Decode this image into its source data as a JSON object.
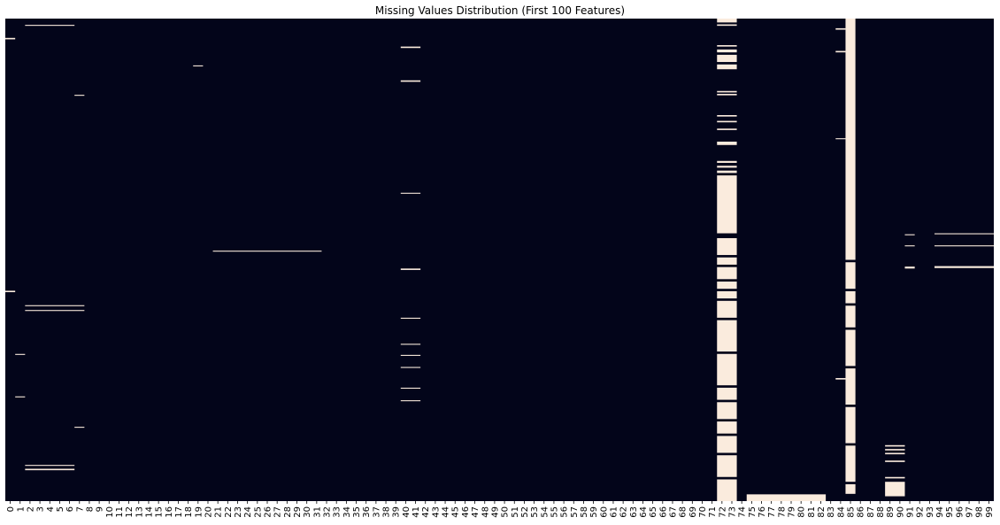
{
  "chart_data": {
    "type": "heatmap",
    "title": "Missing Values Distribution (First 100 Features)",
    "xlabel": "",
    "ylabel": "",
    "x": [
      "0",
      "1",
      "2",
      "3",
      "4",
      "5",
      "6",
      "7",
      "8",
      "9",
      "10",
      "11",
      "12",
      "13",
      "14",
      "15",
      "16",
      "17",
      "18",
      "19",
      "20",
      "21",
      "22",
      "23",
      "24",
      "25",
      "26",
      "27",
      "28",
      "29",
      "30",
      "31",
      "32",
      "33",
      "34",
      "35",
      "36",
      "37",
      "38",
      "39",
      "40",
      "41",
      "42",
      "43",
      "44",
      "45",
      "46",
      "47",
      "48",
      "49",
      "50",
      "51",
      "52",
      "53",
      "54",
      "55",
      "56",
      "57",
      "58",
      "59",
      "60",
      "61",
      "62",
      "63",
      "64",
      "65",
      "66",
      "67",
      "68",
      "69",
      "70",
      "71",
      "72",
      "73",
      "74",
      "75",
      "76",
      "77",
      "78",
      "79",
      "80",
      "81",
      "82",
      "83",
      "84",
      "85",
      "86",
      "87",
      "88",
      "89",
      "90",
      "91",
      "92",
      "93",
      "94",
      "95",
      "96",
      "97",
      "98",
      "99"
    ],
    "row_range": [
      0,
      1
    ],
    "colors": {
      "present": "#03051a",
      "missing": "#faebdd"
    },
    "missing_segments": [
      {
        "cols": [
          0,
          0
        ],
        "rows": [
          0.04,
          0.043
        ]
      },
      {
        "cols": [
          0,
          0
        ],
        "rows": [
          0.564,
          0.567
        ]
      },
      {
        "cols": [
          2,
          6
        ],
        "rows": [
          0.013,
          0.015
        ]
      },
      {
        "cols": [
          1,
          1
        ],
        "rows": [
          0.695,
          0.697
        ]
      },
      {
        "cols": [
          1,
          1
        ],
        "rows": [
          0.783,
          0.785
        ]
      },
      {
        "cols": [
          2,
          7
        ],
        "rows": [
          0.594,
          0.596
        ]
      },
      {
        "cols": [
          2,
          7
        ],
        "rows": [
          0.604,
          0.606
        ]
      },
      {
        "cols": [
          2,
          6
        ],
        "rows": [
          0.925,
          0.927
        ]
      },
      {
        "cols": [
          2,
          6
        ],
        "rows": [
          0.933,
          0.936
        ]
      },
      {
        "cols": [
          7,
          7
        ],
        "rows": [
          0.158,
          0.16
        ]
      },
      {
        "cols": [
          7,
          7
        ],
        "rows": [
          0.846,
          0.848
        ]
      },
      {
        "cols": [
          19,
          19
        ],
        "rows": [
          0.097,
          0.099
        ]
      },
      {
        "cols": [
          21,
          31
        ],
        "rows": [
          0.481,
          0.483
        ]
      },
      {
        "cols": [
          40,
          41
        ],
        "rows": [
          0.058,
          0.061
        ]
      },
      {
        "cols": [
          40,
          41
        ],
        "rows": [
          0.128,
          0.131
        ]
      },
      {
        "cols": [
          40,
          41
        ],
        "rows": [
          0.361,
          0.363
        ]
      },
      {
        "cols": [
          40,
          41
        ],
        "rows": [
          0.518,
          0.521
        ]
      },
      {
        "cols": [
          40,
          41
        ],
        "rows": [
          0.62,
          0.622
        ]
      },
      {
        "cols": [
          40,
          41
        ],
        "rows": [
          0.674,
          0.676
        ]
      },
      {
        "cols": [
          40,
          41
        ],
        "rows": [
          0.697,
          0.699
        ]
      },
      {
        "cols": [
          40,
          41
        ],
        "rows": [
          0.722,
          0.724
        ]
      },
      {
        "cols": [
          40,
          41
        ],
        "rows": [
          0.765,
          0.767
        ]
      },
      {
        "cols": [
          40,
          41
        ],
        "rows": [
          0.791,
          0.793
        ]
      },
      {
        "cols": [
          72,
          73
        ],
        "rows": [
          0,
          0.008
        ]
      },
      {
        "cols": [
          72,
          73
        ],
        "rows": [
          0.012,
          0.015
        ]
      },
      {
        "cols": [
          72,
          73
        ],
        "rows": [
          0.055,
          0.058
        ]
      },
      {
        "cols": [
          72,
          73
        ],
        "rows": [
          0.064,
          0.07
        ]
      },
      {
        "cols": [
          72,
          73
        ],
        "rows": [
          0.075,
          0.09
        ]
      },
      {
        "cols": [
          72,
          73
        ],
        "rows": [
          0.095,
          0.105
        ]
      },
      {
        "cols": [
          72,
          73
        ],
        "rows": [
          0.15,
          0.153
        ]
      },
      {
        "cols": [
          72,
          73
        ],
        "rows": [
          0.156,
          0.159
        ]
      },
      {
        "cols": [
          72,
          73
        ],
        "rows": [
          0.2,
          0.203
        ]
      },
      {
        "cols": [
          72,
          73
        ],
        "rows": [
          0.212,
          0.215
        ]
      },
      {
        "cols": [
          72,
          73
        ],
        "rows": [
          0.228,
          0.231
        ]
      },
      {
        "cols": [
          72,
          73
        ],
        "rows": [
          0.255,
          0.262
        ]
      },
      {
        "cols": [
          72,
          73
        ],
        "rows": [
          0.295,
          0.299
        ]
      },
      {
        "cols": [
          72,
          73
        ],
        "rows": [
          0.305,
          0.309
        ]
      },
      {
        "cols": [
          72,
          73
        ],
        "rows": [
          0.315,
          0.32
        ]
      },
      {
        "cols": [
          72,
          73
        ],
        "rows": [
          0.325,
          0.445
        ]
      },
      {
        "cols": [
          72,
          73
        ],
        "rows": [
          0.455,
          0.49
        ]
      },
      {
        "cols": [
          72,
          73
        ],
        "rows": [
          0.495,
          0.51
        ]
      },
      {
        "cols": [
          72,
          73
        ],
        "rows": [
          0.515,
          0.54
        ]
      },
      {
        "cols": [
          72,
          73
        ],
        "rows": [
          0.545,
          0.56
        ]
      },
      {
        "cols": [
          72,
          73
        ],
        "rows": [
          0.565,
          0.58
        ]
      },
      {
        "cols": [
          72,
          73
        ],
        "rows": [
          0.585,
          0.62
        ]
      },
      {
        "cols": [
          72,
          73
        ],
        "rows": [
          0.625,
          0.69
        ]
      },
      {
        "cols": [
          72,
          73
        ],
        "rows": [
          0.695,
          0.76
        ]
      },
      {
        "cols": [
          72,
          73
        ],
        "rows": [
          0.765,
          0.79
        ]
      },
      {
        "cols": [
          72,
          73
        ],
        "rows": [
          0.795,
          0.83
        ]
      },
      {
        "cols": [
          72,
          73
        ],
        "rows": [
          0.835,
          0.86
        ]
      },
      {
        "cols": [
          72,
          73
        ],
        "rows": [
          0.865,
          0.9
        ]
      },
      {
        "cols": [
          72,
          73
        ],
        "rows": [
          0.905,
          0.95
        ]
      },
      {
        "cols": [
          72,
          73
        ],
        "rows": [
          0.955,
          1.0
        ]
      },
      {
        "cols": [
          75,
          82
        ],
        "rows": [
          0.986,
          1.0
        ]
      },
      {
        "cols": [
          84,
          84
        ],
        "rows": [
          0.02,
          0.023
        ]
      },
      {
        "cols": [
          84,
          84
        ],
        "rows": [
          0.067,
          0.07
        ]
      },
      {
        "cols": [
          84,
          84
        ],
        "rows": [
          0.248,
          0.25
        ]
      },
      {
        "cols": [
          84,
          84
        ],
        "rows": [
          0.745,
          0.748
        ]
      },
      {
        "cols": [
          85,
          85
        ],
        "rows": [
          0,
          0.5
        ]
      },
      {
        "cols": [
          85,
          85
        ],
        "rows": [
          0.505,
          0.56
        ]
      },
      {
        "cols": [
          85,
          85
        ],
        "rows": [
          0.565,
          0.59
        ]
      },
      {
        "cols": [
          85,
          85
        ],
        "rows": [
          0.595,
          0.64
        ]
      },
      {
        "cols": [
          85,
          85
        ],
        "rows": [
          0.645,
          0.72
        ]
      },
      {
        "cols": [
          85,
          85
        ],
        "rows": [
          0.725,
          0.8
        ]
      },
      {
        "cols": [
          85,
          85
        ],
        "rows": [
          0.805,
          0.88
        ]
      },
      {
        "cols": [
          85,
          85
        ],
        "rows": [
          0.885,
          0.96
        ]
      },
      {
        "cols": [
          85,
          85
        ],
        "rows": [
          0.965,
          0.985
        ]
      },
      {
        "cols": [
          89,
          90
        ],
        "rows": [
          0.884,
          0.887
        ]
      },
      {
        "cols": [
          89,
          90
        ],
        "rows": [
          0.892,
          0.895
        ]
      },
      {
        "cols": [
          89,
          90
        ],
        "rows": [
          0.9,
          0.903
        ]
      },
      {
        "cols": [
          89,
          90
        ],
        "rows": [
          0.916,
          0.919
        ]
      },
      {
        "cols": [
          89,
          90
        ],
        "rows": [
          0.95,
          0.953
        ]
      },
      {
        "cols": [
          89,
          90
        ],
        "rows": [
          0.96,
          0.99
        ]
      },
      {
        "cols": [
          91,
          91
        ],
        "rows": [
          0.447,
          0.449
        ]
      },
      {
        "cols": [
          91,
          91
        ],
        "rows": [
          0.47,
          0.472
        ]
      },
      {
        "cols": [
          91,
          91
        ],
        "rows": [
          0.514,
          0.518
        ]
      },
      {
        "cols": [
          94,
          99
        ],
        "rows": [
          0.445,
          0.447
        ]
      },
      {
        "cols": [
          94,
          99
        ],
        "rows": [
          0.47,
          0.472
        ]
      },
      {
        "cols": [
          94,
          99
        ],
        "rows": [
          0.513,
          0.517
        ]
      }
    ]
  }
}
